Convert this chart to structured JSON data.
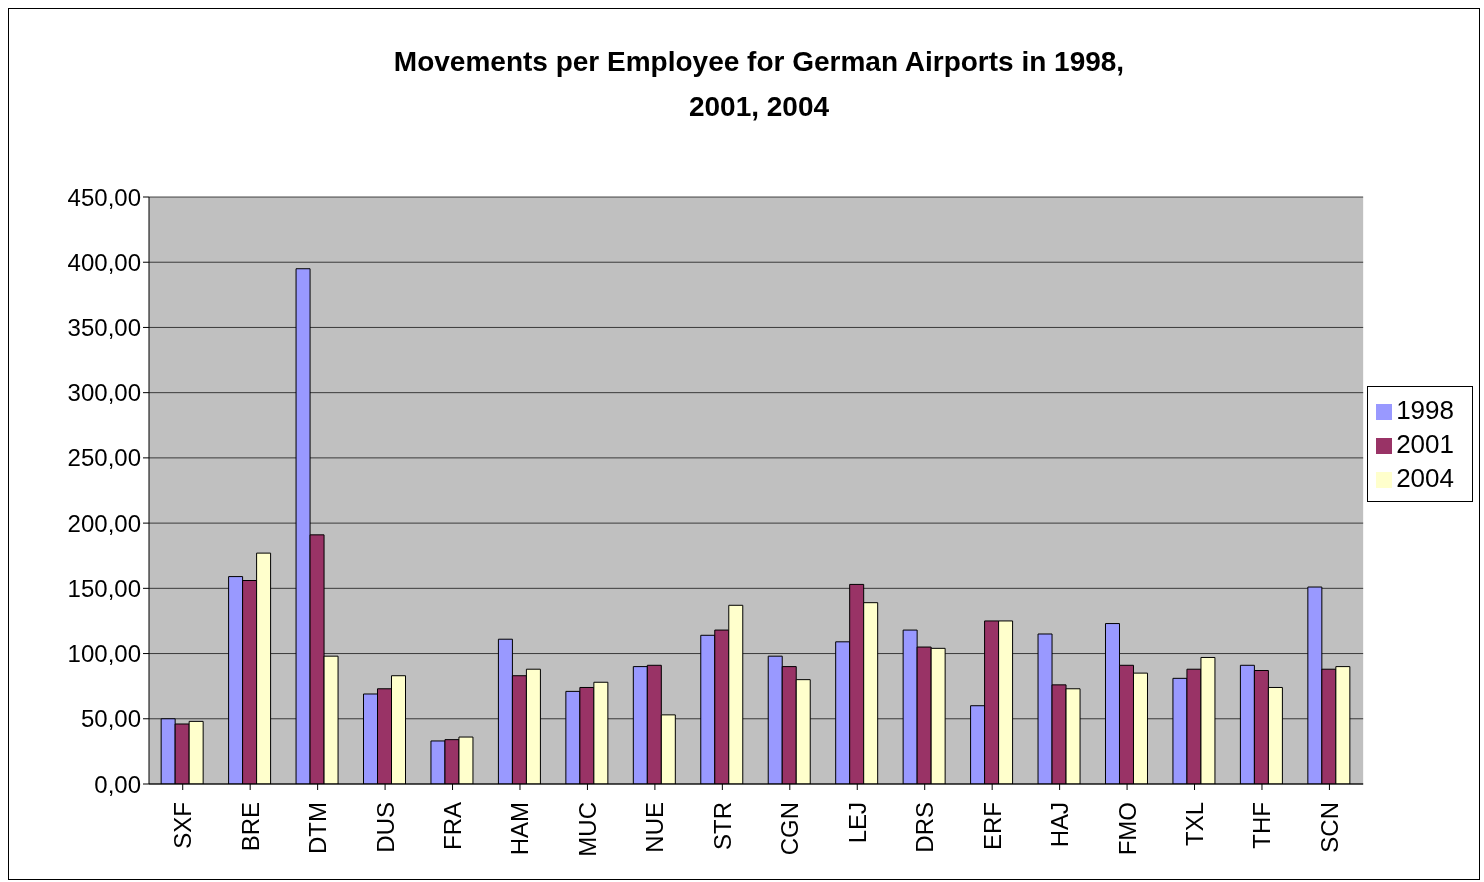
{
  "chart_data": {
    "type": "bar",
    "title": "Movements per Employee for German Airports in 1998, 2001, 2004",
    "categories": [
      "SXF",
      "BRE",
      "DTM",
      "DUS",
      "FRA",
      "HAM",
      "MUC",
      "NUE",
      "STR",
      "CGN",
      "LEJ",
      "DRS",
      "ERF",
      "HAJ",
      "FMO",
      "TXL",
      "THF",
      "SCN"
    ],
    "series": [
      {
        "name": "1998",
        "color": "#9999ff",
        "values": [
          50,
          159,
          395,
          69,
          33,
          111,
          71,
          90,
          114,
          98,
          109,
          118,
          60,
          115,
          123,
          81,
          91,
          151
        ]
      },
      {
        "name": "2001",
        "color": "#993366",
        "values": [
          46,
          156,
          191,
          73,
          34,
          83,
          74,
          91,
          118,
          90,
          153,
          105,
          125,
          76,
          91,
          88,
          87,
          88
        ]
      },
      {
        "name": "2004",
        "color": "#ffffcc",
        "values": [
          48,
          177,
          98,
          83,
          36,
          88,
          78,
          53,
          137,
          80,
          139,
          104,
          125,
          73,
          85,
          97,
          74,
          90
        ]
      }
    ],
    "ylim": [
      0,
      450
    ],
    "yticks": [
      {
        "value": 0,
        "label": "0,00"
      },
      {
        "value": 50,
        "label": "50,00"
      },
      {
        "value": 100,
        "label": "100,00"
      },
      {
        "value": 150,
        "label": "150,00"
      },
      {
        "value": 200,
        "label": "200,00"
      },
      {
        "value": 250,
        "label": "250,00"
      },
      {
        "value": 300,
        "label": "300,00"
      },
      {
        "value": 350,
        "label": "350,00"
      },
      {
        "value": 400,
        "label": "400,00"
      },
      {
        "value": 450,
        "label": "450,00"
      }
    ],
    "grid": "y",
    "legend": "right"
  }
}
